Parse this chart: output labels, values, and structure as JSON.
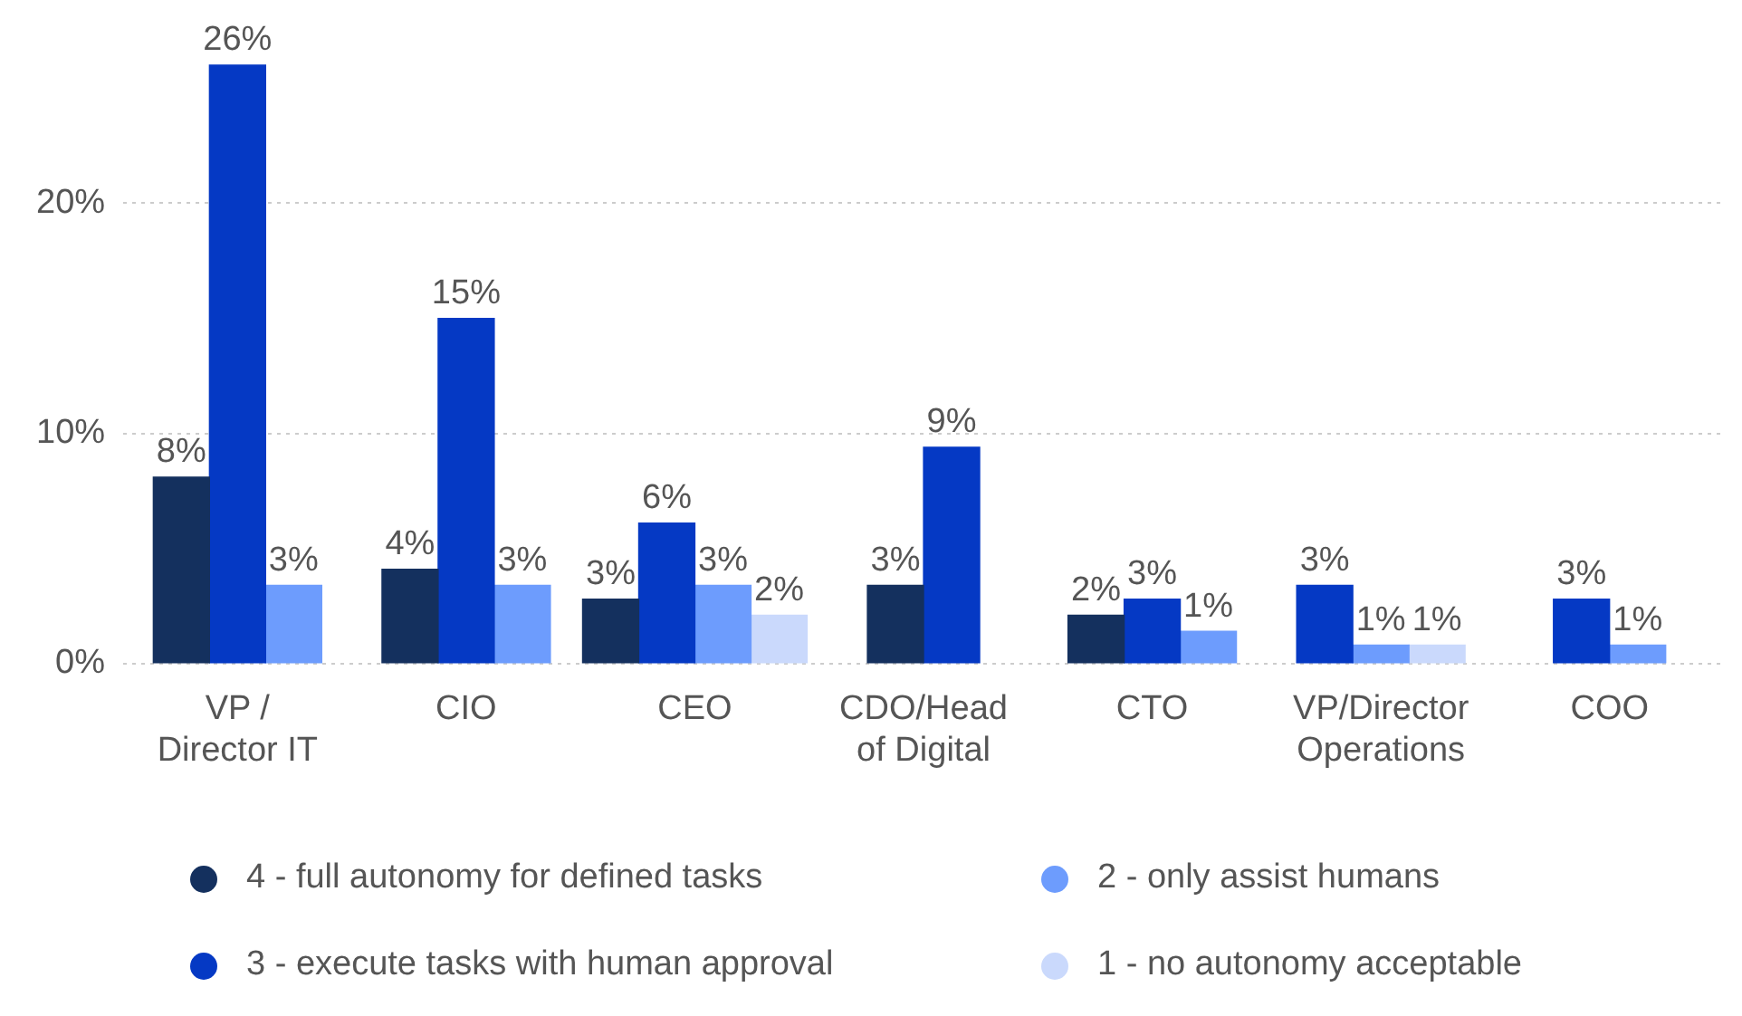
{
  "chart_data": {
    "type": "bar",
    "categories": [
      "VP / Director IT",
      "CIO",
      "CEO",
      "CDO/Head of Digital",
      "CTO",
      "VP/Director Operations",
      "COO"
    ],
    "series": [
      {
        "name": "4 - full autonomy for defined tasks",
        "color": "#14305e",
        "values": [
          8.1,
          4.1,
          2.8,
          3.4,
          2.1,
          null,
          null
        ],
        "value_labels": [
          "8%",
          "4%",
          "3%",
          "3%",
          "2%",
          null,
          null
        ]
      },
      {
        "name": "3 - execute tasks with human approval",
        "color": "#0539c4",
        "values": [
          26,
          15,
          6.1,
          9.4,
          2.8,
          3.4,
          2.8
        ],
        "value_labels": [
          "26%",
          "15%",
          "6%",
          "9%",
          "3%",
          "3%",
          "3%"
        ]
      },
      {
        "name": "2 - only assist humans",
        "color": "#6d9cfd",
        "values": [
          3.4,
          3.4,
          3.4,
          null,
          1.4,
          0.8,
          0.8
        ],
        "value_labels": [
          "3%",
          "3%",
          "3%",
          null,
          "1%",
          "1%",
          "1%"
        ]
      },
      {
        "name": "1 - no autonomy acceptable",
        "color": "#cad9fc",
        "values": [
          null,
          null,
          2.1,
          null,
          null,
          0.8,
          null
        ],
        "value_labels": [
          null,
          null,
          "2%",
          null,
          null,
          "1%",
          null
        ]
      }
    ],
    "ylim": [
      0,
      26
    ],
    "yticks": [
      {
        "value": 0,
        "label": "0%"
      },
      {
        "value": 10,
        "label": "10%"
      },
      {
        "value": 20,
        "label": "20%"
      }
    ],
    "grid": "y",
    "legend": "bottom"
  }
}
